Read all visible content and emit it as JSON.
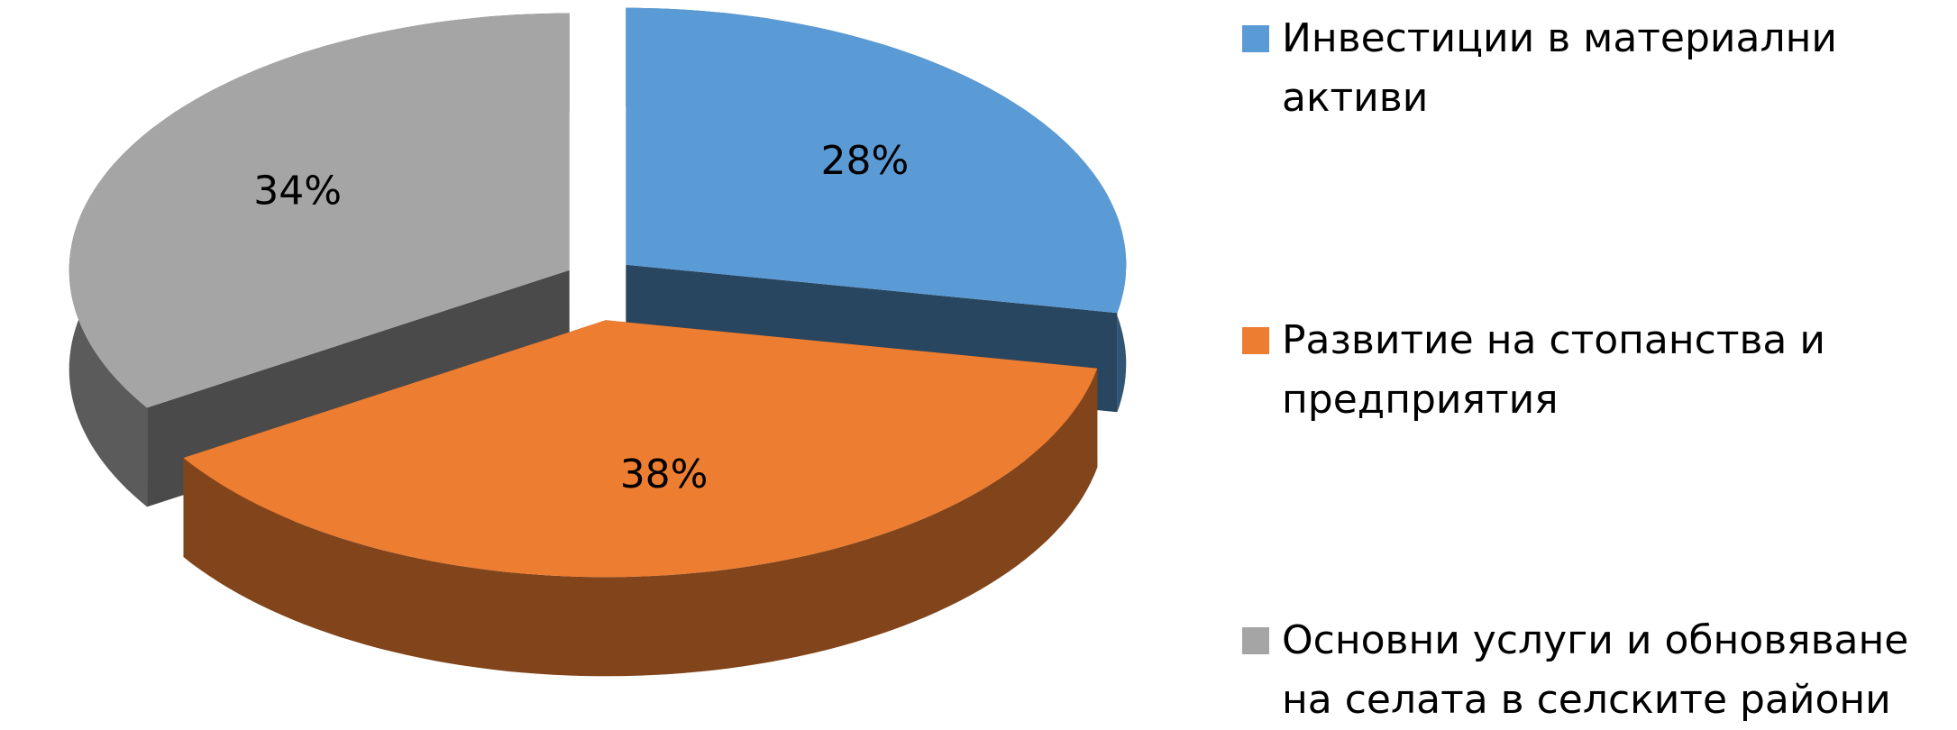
{
  "chart_data": {
    "type": "pie",
    "categories": [
      "Инвестиции в материални активи",
      "Развитие на стопанства и предприятия",
      "Основни услуги и обновяване на селата в селските райони"
    ],
    "values": [
      28,
      38,
      34
    ],
    "value_labels": [
      "28%",
      "38%",
      "34%"
    ],
    "colors": [
      "#5b9bd5",
      "#ed7d31",
      "#a5a5a5"
    ],
    "legend": "right"
  }
}
